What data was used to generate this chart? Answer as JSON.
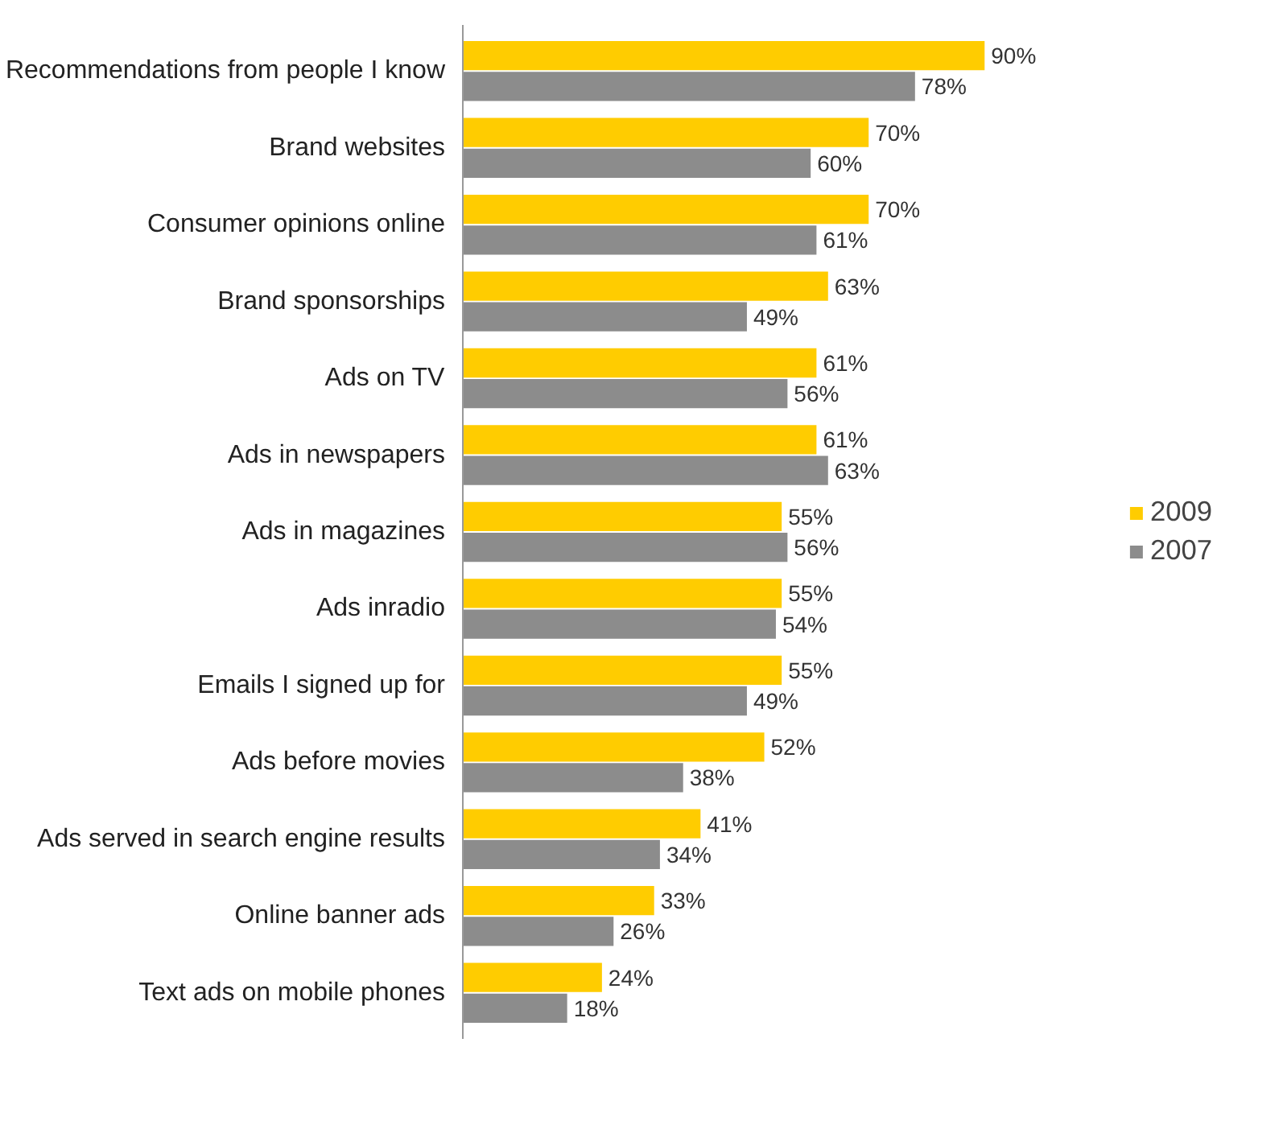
{
  "chart_data": {
    "type": "bar",
    "orientation": "horizontal",
    "legend": "right",
    "categories": [
      "Recommendations from people I know",
      "Brand websites",
      "Consumer opinions online",
      "Brand sponsorships",
      "Ads on TV",
      "Ads in newspapers",
      "Ads in magazines",
      "Ads inradio",
      "Emails I signed up for",
      "Ads before movies",
      "Ads served in search engine results",
      "Online banner ads",
      "Text ads on mobile phones"
    ],
    "series": [
      {
        "name": "2009",
        "color": "#ffcc00",
        "values": [
          90,
          70,
          70,
          63,
          61,
          61,
          55,
          55,
          55,
          52,
          41,
          33,
          24
        ],
        "value_labels": [
          "90%",
          "70%",
          "70%",
          "63%",
          "61%",
          "61%",
          "55%",
          "55%",
          "55%",
          "52%",
          "41%",
          "33%",
          "24%"
        ]
      },
      {
        "name": "2007",
        "color": "#8c8c8c",
        "values": [
          78,
          60,
          61,
          49,
          56,
          63,
          56,
          54,
          49,
          38,
          34,
          26,
          18
        ],
        "value_labels": [
          "78%",
          "60%",
          "61%",
          "49%",
          "56%",
          "63%",
          "56%",
          "54%",
          "49%",
          "38%",
          "34%",
          "26%",
          "18%"
        ]
      }
    ]
  }
}
